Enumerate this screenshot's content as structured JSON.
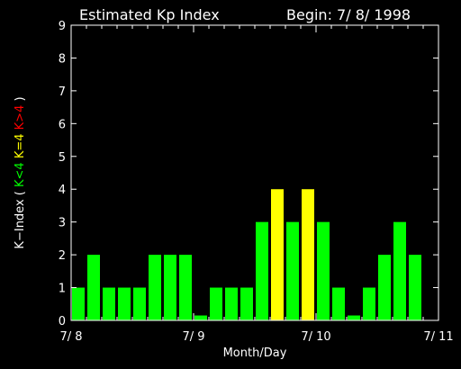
{
  "chart_data": {
    "type": "bar",
    "title": "Estimated Kp Index",
    "begin": "Begin: 7/ 8/ 1998",
    "ylabel_parts": [
      {
        "text": "K−Index (",
        "color": "#ffffff"
      },
      {
        "text": "K<4",
        "color": "#00ff00"
      },
      {
        "text": "K=4",
        "color": "#ffff00"
      },
      {
        "text": "K>4",
        "color": "#ff0000"
      },
      {
        "text": ")",
        "color": "#ffffff"
      }
    ],
    "xlabel": "Month/Day",
    "ylim": [
      0,
      9
    ],
    "yticks": [
      "0",
      "1",
      "2",
      "3",
      "4",
      "5",
      "6",
      "7",
      "8",
      "9"
    ],
    "xlim": [
      0,
      24
    ],
    "xticks": [
      {
        "x": 0,
        "label": "7/ 8"
      },
      {
        "x": 8,
        "label": "7/ 9"
      },
      {
        "x": 16,
        "label": "7/ 10"
      },
      {
        "x": 24,
        "label": "7/ 11"
      }
    ],
    "bar_start": 0,
    "values": [
      1,
      2,
      1,
      1,
      1,
      2,
      2,
      2,
      0.15,
      1,
      1,
      1,
      3,
      4,
      3,
      4,
      3,
      1,
      0.15,
      1,
      2,
      3,
      2
    ],
    "colors": {
      "low": "#00ff00",
      "mid": "#ffff00",
      "high": "#ff0000"
    },
    "grid": false
  }
}
